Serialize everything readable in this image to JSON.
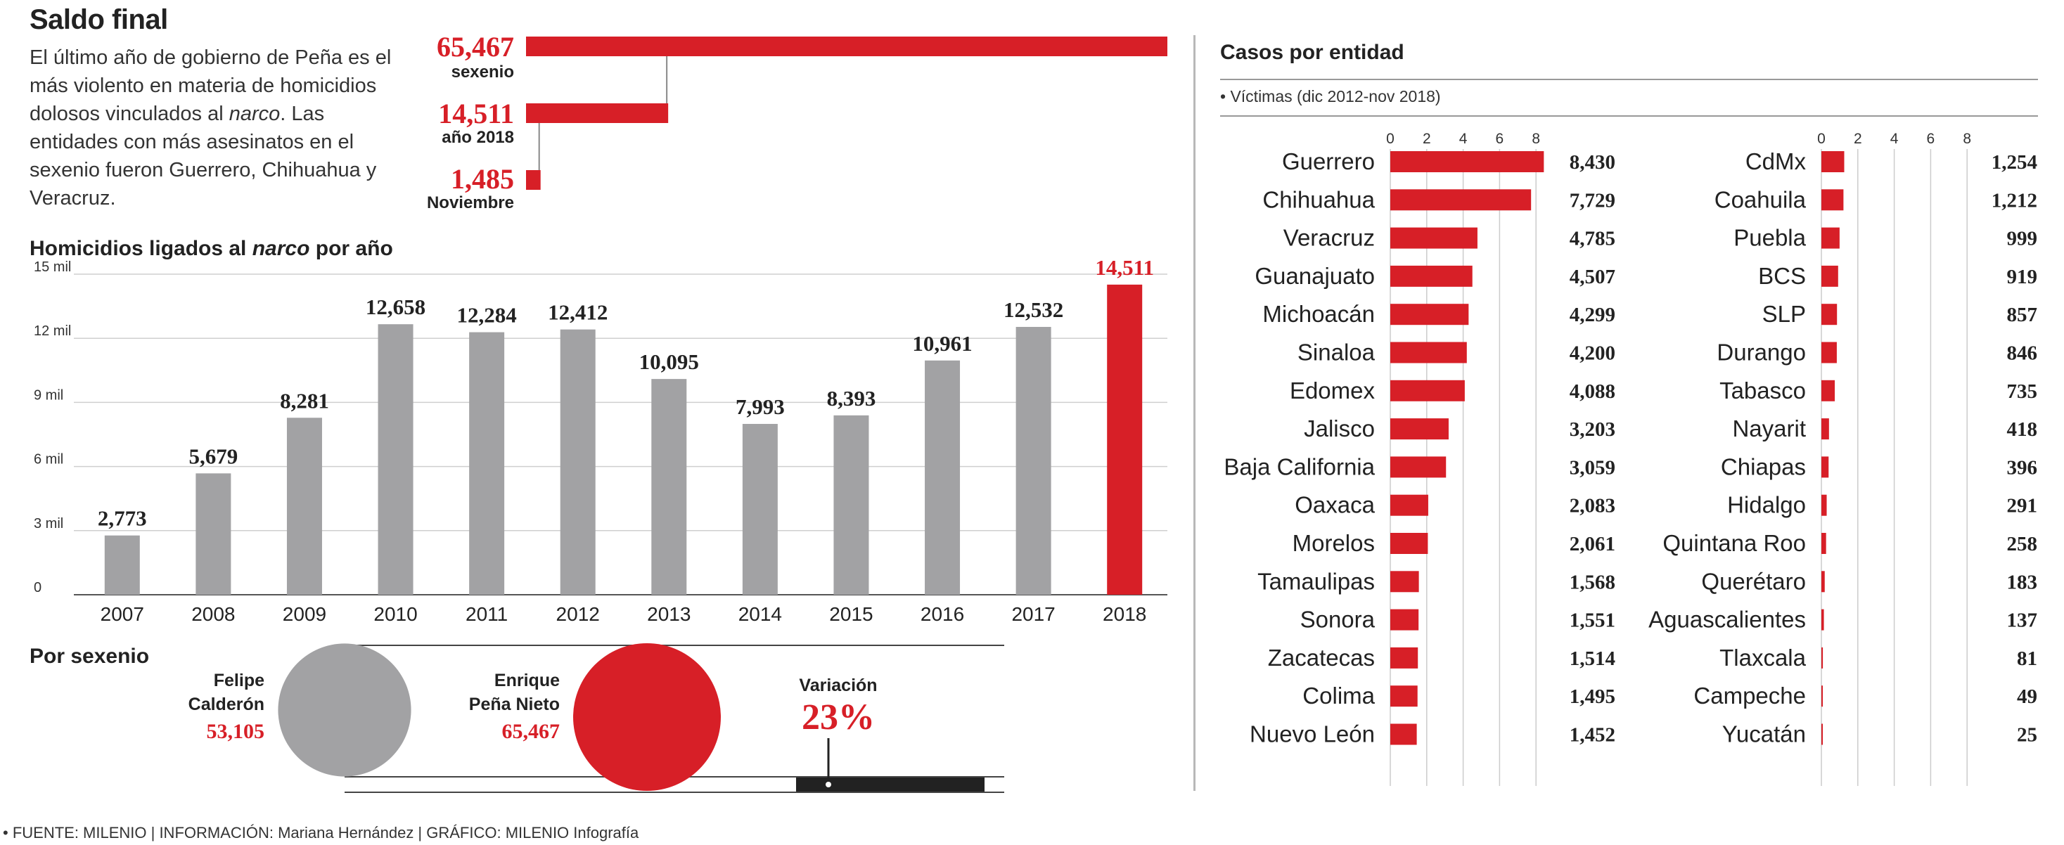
{
  "title": "Saldo final",
  "intro": {
    "before": "El último año de gobierno de Peña es el más violento en materia de homicidios dolosos vinculados al ",
    "em": "narco",
    "after": ". Las entidades con más asesinatos en el sexenio fueron Guerrero, Chihuahua y Veracruz."
  },
  "accent": "#d71f27",
  "gray": "#a2a2a4",
  "summary": [
    {
      "value": "65,467",
      "label": "sexenio",
      "number": 65467
    },
    {
      "value": "14,511",
      "label": "año 2018",
      "number": 14511
    },
    {
      "value": "1,485",
      "label": "Noviembre",
      "number": 1485
    }
  ],
  "yearly": {
    "title_before": "Homicidios ligados al ",
    "title_em": "narco",
    "title_after": " por año"
  },
  "sexenio": {
    "title": "Por sexenio",
    "calderon": {
      "name1": "Felipe",
      "name2": "Calderón",
      "value": "53,105",
      "number": 53105
    },
    "pena": {
      "name1": "Enrique",
      "name2": "Peña Nieto",
      "value": "65,467",
      "number": 65467
    },
    "variation_label": "Variación",
    "variation_value": "23%"
  },
  "states": {
    "title": "Casos por entidad",
    "subtitle": "• Víctimas (dic 2012-nov 2018)"
  },
  "footer": "• FUENTE: MILENIO | INFORMACIÓN: Mariana Hernández | GRÁFICO: MILENIO Infografía",
  "chart_data": [
    {
      "type": "bar",
      "orientation": "horizontal",
      "categories": [
        "sexenio",
        "año 2018",
        "Noviembre"
      ],
      "values": [
        65467,
        14511,
        1485
      ],
      "value_labels": [
        "65,467",
        "14,511",
        "1,485"
      ]
    },
    {
      "type": "bar",
      "title": "Homicidios ligados al narco por año",
      "categories": [
        "2007",
        "2008",
        "2009",
        "2010",
        "2011",
        "2012",
        "2013",
        "2014",
        "2015",
        "2016",
        "2017",
        "2018"
      ],
      "values": [
        2773,
        5679,
        8281,
        12658,
        12284,
        12412,
        10095,
        7993,
        8393,
        10961,
        12532,
        14511
      ],
      "value_labels": [
        "2,773",
        "5,679",
        "8,281",
        "12,658",
        "12,284",
        "12,412",
        "10,095",
        "7,993",
        "8,393",
        "10,961",
        "12,532",
        "14,511"
      ],
      "highlight": "2018",
      "yticks": [
        0,
        3000,
        6000,
        9000,
        12000,
        15000
      ],
      "yticklabels": [
        "0",
        "3 mil",
        "6 mil",
        "9 mil",
        "12 mil",
        "15 mil"
      ],
      "ylim": [
        0,
        15000
      ],
      "grid": true
    },
    {
      "type": "bar",
      "orientation": "horizontal",
      "title": "Casos por entidad",
      "subtitle": "Víctimas (dic 2012-nov 2018)",
      "xticklabels": [
        "0",
        "2",
        "4",
        "6",
        "8"
      ],
      "xticks": [
        0,
        2000,
        4000,
        6000,
        8000
      ],
      "xlim": [
        0,
        8000
      ],
      "groups": [
        {
          "categories": [
            "Guerrero",
            "Chihuahua",
            "Veracruz",
            "Guanajuato",
            "Michoacán",
            "Sinaloa",
            "Edomex",
            "Jalisco",
            "Baja California",
            "Oaxaca",
            "Morelos",
            "Tamaulipas",
            "Sonora",
            "Zacatecas",
            "Colima",
            "Nuevo León"
          ],
          "values": [
            8430,
            7729,
            4785,
            4507,
            4299,
            4200,
            4088,
            3203,
            3059,
            2083,
            2061,
            1568,
            1551,
            1514,
            1495,
            1452
          ],
          "value_labels": [
            "8,430",
            "7,729",
            "4,785",
            "4,507",
            "4,299",
            "4,200",
            "4,088",
            "3,203",
            "3,059",
            "2,083",
            "2,061",
            "1,568",
            "1,551",
            "1,514",
            "1,495",
            "1,452"
          ]
        },
        {
          "categories": [
            "CdMx",
            "Coahuila",
            "Puebla",
            "BCS",
            "SLP",
            "Durango",
            "Tabasco",
            "Nayarit",
            "Chiapas",
            "Hidalgo",
            "Quintana Roo",
            "Querétaro",
            "Aguascalientes",
            "Tlaxcala",
            "Campeche",
            "Yucatán"
          ],
          "values": [
            1254,
            1212,
            999,
            919,
            857,
            846,
            735,
            418,
            396,
            291,
            258,
            183,
            137,
            81,
            49,
            25
          ],
          "value_labels": [
            "1,254",
            "1,212",
            "999",
            "919",
            "857",
            "846",
            "735",
            "418",
            "396",
            "291",
            "258",
            "183",
            "137",
            "81",
            "49",
            "25"
          ]
        }
      ]
    }
  ]
}
